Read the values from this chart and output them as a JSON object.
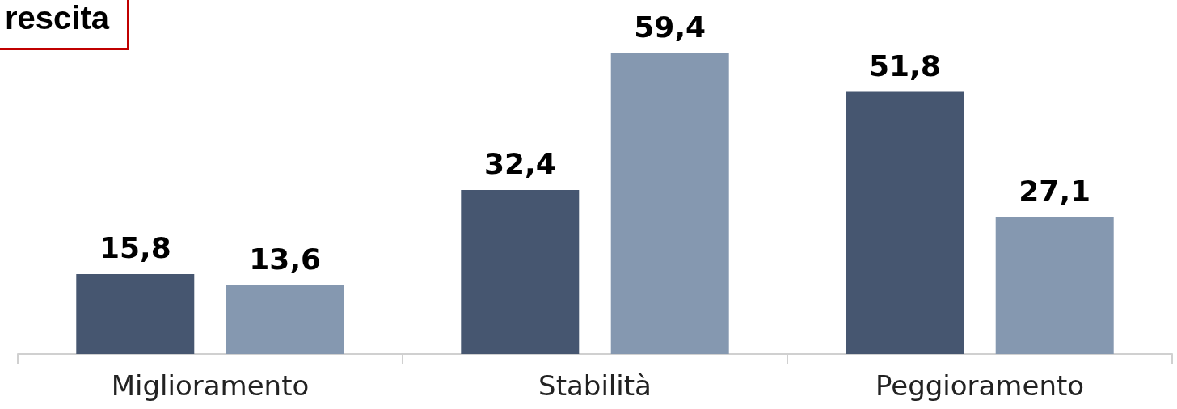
{
  "chart_data": {
    "type": "bar",
    "title": "rescita",
    "categories": [
      "Miglioramento",
      "Stabilità",
      "Peggioramento"
    ],
    "series": [
      {
        "color": "#465670",
        "values": [
          15.8,
          32.4,
          51.8
        ],
        "value_labels": [
          "15,8",
          "32,4",
          "51,8"
        ]
      },
      {
        "color": "#8598b0",
        "values": [
          13.6,
          59.4,
          27.1
        ],
        "value_labels": [
          "13,6",
          "59,4",
          "27,1"
        ]
      }
    ]
  }
}
